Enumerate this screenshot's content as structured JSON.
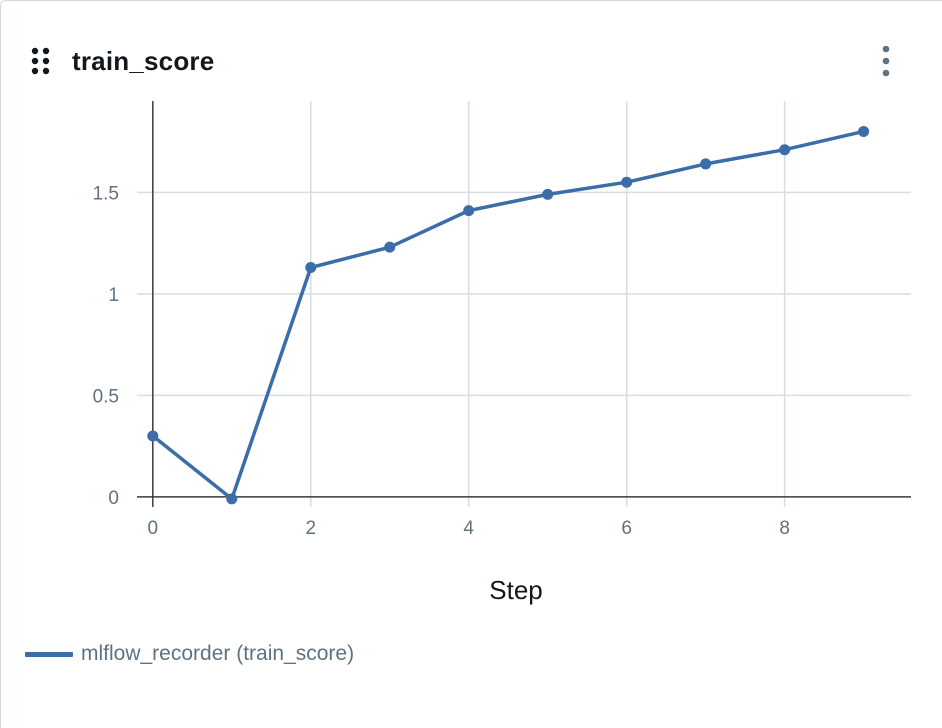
{
  "panel": {
    "title": "train_score",
    "drag_icon": "drag-grip-icon",
    "menu_icon": "kebab-menu-icon"
  },
  "colors": {
    "series": "#3b6ea8",
    "grid": "#d7dde4",
    "axis": "#3b3b3b",
    "tick": "#5f7281"
  },
  "chart_data": {
    "type": "line",
    "title": "train_score",
    "xlabel": "Step",
    "ylabel": "",
    "xlim": [
      -0.2,
      9.6
    ],
    "ylim": [
      -0.05,
      1.95
    ],
    "x_ticks": [
      0,
      2,
      4,
      6,
      8
    ],
    "x_tick_labels": [
      "0",
      "2",
      "4",
      "6",
      "8"
    ],
    "y_ticks": [
      0,
      0.5,
      1,
      1.5
    ],
    "y_tick_labels": [
      "0",
      "0.5",
      "1",
      "1.5"
    ],
    "grid": true,
    "legend_position": "bottom-left",
    "series": [
      {
        "name": "mlflow_recorder (train_score)",
        "color": "#3b6ea8",
        "x": [
          0,
          1,
          2,
          3,
          4,
          5,
          6,
          7,
          8,
          9
        ],
        "y": [
          0.3,
          -0.01,
          1.13,
          1.23,
          1.41,
          1.49,
          1.55,
          1.64,
          1.71,
          1.8
        ]
      }
    ]
  }
}
